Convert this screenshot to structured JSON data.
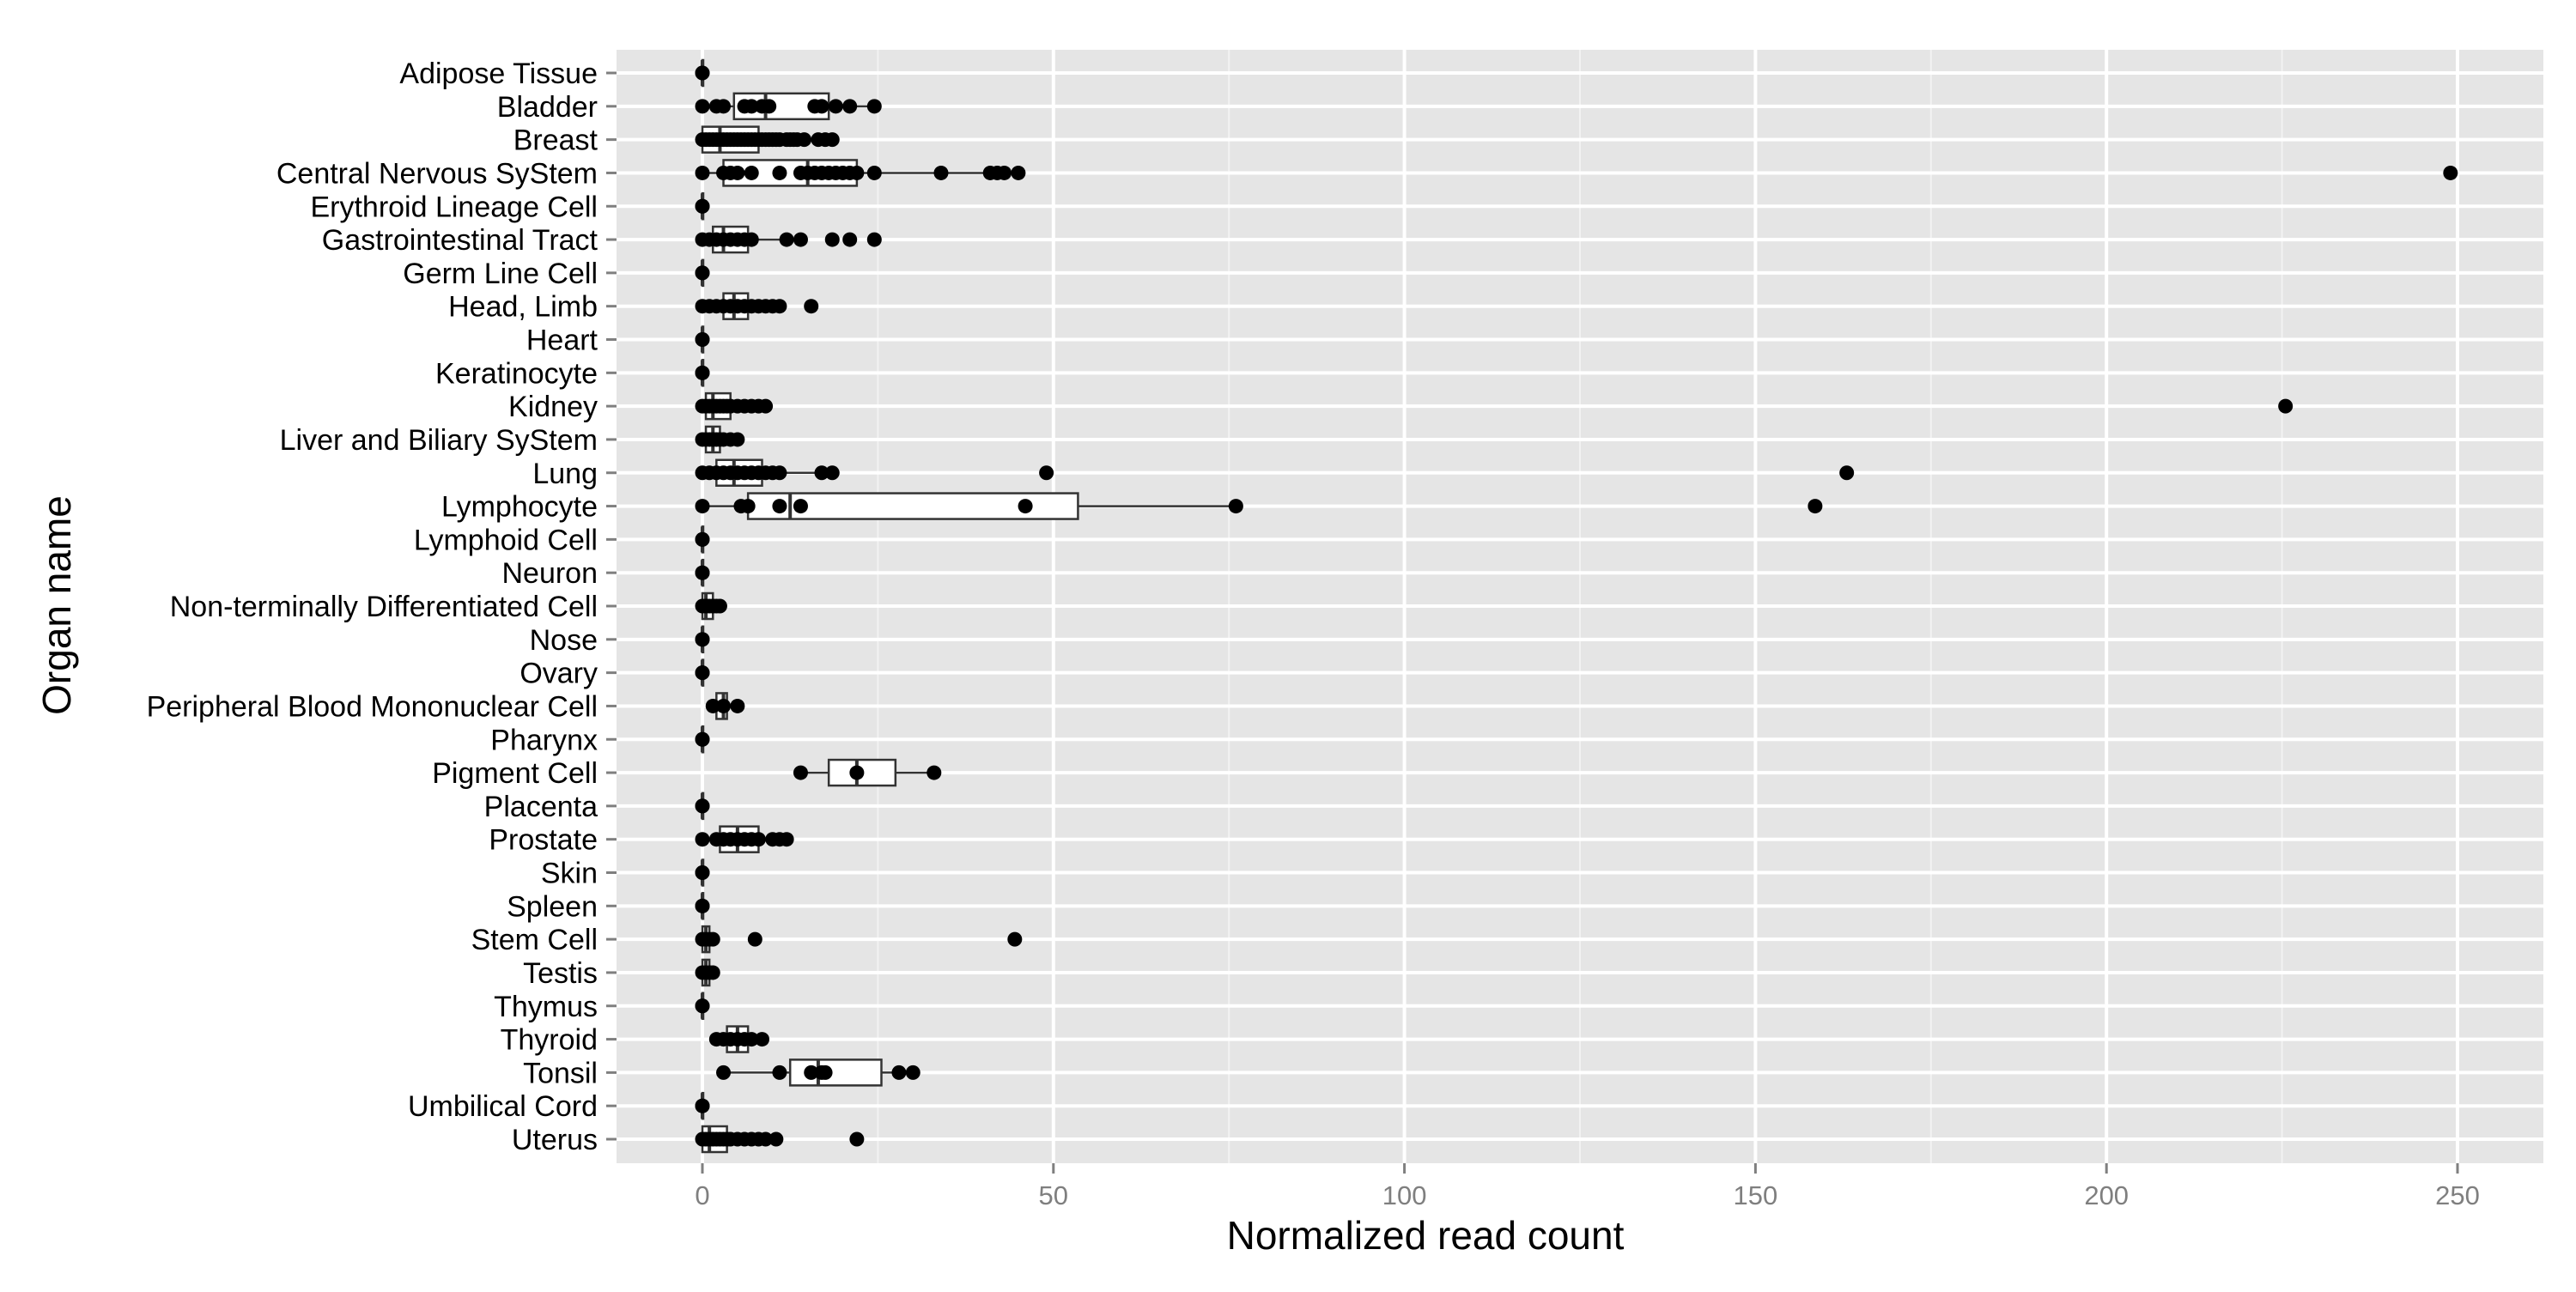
{
  "chart_data": {
    "type": "boxplot",
    "orientation": "horizontal",
    "xlabel": "Normalized read count",
    "ylabel": "Organ name",
    "xlim": [
      -12.5,
      262
    ],
    "x_ticks": [
      0,
      50,
      100,
      150,
      200,
      250
    ],
    "x_tick_labels": [
      "0",
      "50",
      "100",
      "150",
      "200",
      "250"
    ],
    "grid": true,
    "legend": "none",
    "colors": {
      "panel": "#e5e5e5",
      "grid_major": "#ffffff",
      "grid_minor": "#f2f2f2",
      "box_fill": "#ffffff",
      "box_stroke": "#333333",
      "points": "#000000",
      "tick_label": "#7f7f7f"
    },
    "categories": [
      {
        "name": "Adipose Tissue",
        "box": {
          "q1": 0,
          "median": 0,
          "q3": 0,
          "whisker_low": 0,
          "whisker_high": 0
        },
        "points": [
          0,
          0
        ]
      },
      {
        "name": "Bladder",
        "box": {
          "q1": 4.5,
          "median": 9,
          "q3": 18,
          "whisker_low": 0,
          "whisker_high": 25
        },
        "points": [
          0,
          2,
          3,
          6,
          7,
          8.5,
          9.5,
          16,
          17,
          19,
          21,
          24.5
        ]
      },
      {
        "name": "Breast",
        "box": {
          "q1": 0,
          "median": 2.5,
          "q3": 8,
          "whisker_low": 0,
          "whisker_high": 18.5
        },
        "points": [
          0,
          0.5,
          1,
          1.5,
          2,
          2.5,
          3,
          3.5,
          4,
          4.5,
          5,
          5.5,
          6,
          6.5,
          7,
          7.5,
          8,
          8.5,
          9,
          9.5,
          10,
          10.5,
          11,
          12,
          12.5,
          13,
          13.5,
          14.5,
          16.5,
          17.5,
          18.5
        ]
      },
      {
        "name": "Central Nervous SyStem",
        "box": {
          "q1": 3,
          "median": 15,
          "q3": 22,
          "whisker_low": 0,
          "whisker_high": 45
        },
        "points": [
          0,
          3,
          4,
          5,
          7,
          11,
          14,
          15,
          16,
          17,
          18,
          19,
          20,
          21,
          22,
          24.5,
          34,
          41,
          42,
          43,
          45,
          249
        ]
      },
      {
        "name": "Erythroid Lineage Cell",
        "box": {
          "q1": 0,
          "median": 0,
          "q3": 0,
          "whisker_low": 0,
          "whisker_high": 0
        },
        "points": [
          0,
          0
        ]
      },
      {
        "name": "Gastrointestinal Tract",
        "box": {
          "q1": 1.5,
          "median": 3,
          "q3": 6.5,
          "whisker_low": 0,
          "whisker_high": 13
        },
        "points": [
          0,
          1,
          2,
          3,
          4,
          5,
          6,
          7,
          12,
          14,
          18.5,
          21,
          24.5
        ]
      },
      {
        "name": "Germ Line Cell",
        "box": {
          "q1": 0,
          "median": 0,
          "q3": 0,
          "whisker_low": 0,
          "whisker_high": 0
        },
        "points": [
          0,
          0
        ]
      },
      {
        "name": "Head, Limb",
        "box": {
          "q1": 3,
          "median": 4.5,
          "q3": 6.5,
          "whisker_low": 0,
          "whisker_high": 11
        },
        "points": [
          0,
          1,
          2,
          3,
          4,
          5,
          6,
          7,
          8,
          9,
          10,
          11,
          15.5
        ]
      },
      {
        "name": "Heart",
        "box": {
          "q1": 0,
          "median": 0,
          "q3": 0,
          "whisker_low": 0,
          "whisker_high": 0
        },
        "points": [
          0,
          0
        ]
      },
      {
        "name": "Keratinocyte",
        "box": {
          "q1": 0,
          "median": 0,
          "q3": 0,
          "whisker_low": 0,
          "whisker_high": 0
        },
        "points": [
          0,
          0
        ]
      },
      {
        "name": "Kidney",
        "box": {
          "q1": 0.5,
          "median": 1.5,
          "q3": 4,
          "whisker_low": 0,
          "whisker_high": 9
        },
        "points": [
          0,
          0.5,
          1,
          1.5,
          2,
          2.5,
          3,
          3.5,
          4,
          5,
          6,
          7,
          8,
          9,
          225.5
        ]
      },
      {
        "name": "Liver and Biliary SyStem",
        "box": {
          "q1": 0.5,
          "median": 1.5,
          "q3": 2.5,
          "whisker_low": 0,
          "whisker_high": 5
        },
        "points": [
          0,
          0.5,
          1,
          1.5,
          2,
          2.5,
          3,
          4,
          5
        ]
      },
      {
        "name": "Lung",
        "box": {
          "q1": 2,
          "median": 4.5,
          "q3": 8.5,
          "whisker_low": 0,
          "whisker_high": 18
        },
        "points": [
          0,
          1,
          2,
          3,
          4,
          5,
          6,
          7,
          8,
          9,
          10,
          11,
          17,
          18.5,
          49,
          163
        ]
      },
      {
        "name": "Lymphocyte",
        "box": {
          "q1": 6.5,
          "median": 12.5,
          "q3": 53.5,
          "whisker_low": 0,
          "whisker_high": 76
        },
        "points": [
          0,
          5.5,
          6.5,
          11,
          14,
          46,
          76,
          158.5
        ]
      },
      {
        "name": "Lymphoid Cell",
        "box": {
          "q1": 0,
          "median": 0,
          "q3": 0,
          "whisker_low": 0,
          "whisker_high": 0
        },
        "points": [
          0,
          0
        ]
      },
      {
        "name": "Neuron",
        "box": {
          "q1": 0,
          "median": 0,
          "q3": 0,
          "whisker_low": 0,
          "whisker_high": 0
        },
        "points": [
          0,
          0
        ]
      },
      {
        "name": "Non-terminally Differentiated Cell",
        "box": {
          "q1": 0,
          "median": 0.5,
          "q3": 1.5,
          "whisker_low": 0,
          "whisker_high": 2.5
        },
        "points": [
          0,
          0.5,
          1,
          1.5,
          2,
          2.5
        ]
      },
      {
        "name": "Nose",
        "box": {
          "q1": 0,
          "median": 0,
          "q3": 0,
          "whisker_low": 0,
          "whisker_high": 0
        },
        "points": [
          0,
          0
        ]
      },
      {
        "name": "Ovary",
        "box": {
          "q1": 0,
          "median": 0,
          "q3": 0,
          "whisker_low": 0,
          "whisker_high": 0
        },
        "points": [
          0,
          0
        ]
      },
      {
        "name": "Peripheral Blood Mononuclear Cell",
        "box": {
          "q1": 2,
          "median": 3,
          "q3": 3.5,
          "whisker_low": 1.5,
          "whisker_high": 5
        },
        "points": [
          1.5,
          3,
          5
        ]
      },
      {
        "name": "Pharynx",
        "box": {
          "q1": 0,
          "median": 0,
          "q3": 0,
          "whisker_low": 0,
          "whisker_high": 0
        },
        "points": [
          0,
          0
        ]
      },
      {
        "name": "Pigment Cell",
        "box": {
          "q1": 18,
          "median": 22,
          "q3": 27.5,
          "whisker_low": 14,
          "whisker_high": 33
        },
        "points": [
          14,
          22,
          33
        ]
      },
      {
        "name": "Placenta",
        "box": {
          "q1": 0,
          "median": 0,
          "q3": 0,
          "whisker_low": 0,
          "whisker_high": 0
        },
        "points": [
          0,
          0
        ]
      },
      {
        "name": "Prostate",
        "box": {
          "q1": 2.5,
          "median": 5,
          "q3": 8,
          "whisker_low": 0,
          "whisker_high": 12
        },
        "points": [
          0,
          2,
          3,
          4,
          5,
          6,
          7,
          8,
          10,
          11,
          12
        ]
      },
      {
        "name": "Skin",
        "box": {
          "q1": 0,
          "median": 0,
          "q3": 0,
          "whisker_low": 0,
          "whisker_high": 0
        },
        "points": [
          0,
          0
        ]
      },
      {
        "name": "Spleen",
        "box": {
          "q1": 0,
          "median": 0,
          "q3": 0,
          "whisker_low": 0,
          "whisker_high": 0
        },
        "points": [
          0,
          0
        ]
      },
      {
        "name": "Stem Cell",
        "box": {
          "q1": 0,
          "median": 0.5,
          "q3": 1,
          "whisker_low": 0,
          "whisker_high": 1.5
        },
        "points": [
          0,
          0.5,
          1,
          1.5,
          7.5,
          44.5
        ]
      },
      {
        "name": "Testis",
        "box": {
          "q1": 0,
          "median": 0.5,
          "q3": 1,
          "whisker_low": 0,
          "whisker_high": 1.5
        },
        "points": [
          0,
          0.5,
          1,
          1.5
        ]
      },
      {
        "name": "Thymus",
        "box": {
          "q1": 0,
          "median": 0,
          "q3": 0,
          "whisker_low": 0,
          "whisker_high": 0
        },
        "points": [
          0,
          0
        ]
      },
      {
        "name": "Thyroid",
        "box": {
          "q1": 3.5,
          "median": 5,
          "q3": 6.5,
          "whisker_low": 2,
          "whisker_high": 8.5
        },
        "points": [
          2,
          3,
          4,
          5,
          6,
          7,
          8.5
        ]
      },
      {
        "name": "Tonsil",
        "box": {
          "q1": 12.5,
          "median": 16.5,
          "q3": 25.5,
          "whisker_low": 3,
          "whisker_high": 30
        },
        "points": [
          3,
          11,
          15.5,
          17,
          17.5,
          28,
          30
        ]
      },
      {
        "name": "Umbilical Cord",
        "box": {
          "q1": 0,
          "median": 0,
          "q3": 0,
          "whisker_low": 0,
          "whisker_high": 0
        },
        "points": [
          0,
          0
        ]
      },
      {
        "name": "Uterus",
        "box": {
          "q1": 0,
          "median": 1,
          "q3": 3.5,
          "whisker_low": 0,
          "whisker_high": 10
        },
        "points": [
          0,
          0.5,
          1,
          1.5,
          2,
          2.5,
          3,
          3.5,
          4,
          5,
          6,
          7,
          8,
          9,
          10.5,
          22
        ]
      }
    ]
  }
}
